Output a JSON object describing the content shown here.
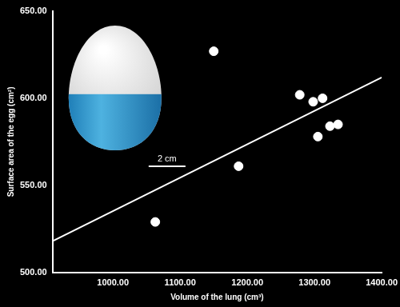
{
  "chart_data": {
    "type": "scatter",
    "x_label": "Volume of the lung (cm³)",
    "y_label": "Surface area of the egg (cm²)",
    "annotations": [
      "2 cm"
    ],
    "series": [
      {
        "type": "scatter",
        "color": "#ffffff",
        "marker": "circle",
        "x": [
          1063,
          1150,
          1187,
          1278,
          1298,
          1312,
          1305,
          1323,
          1335
        ],
        "values": [
          529,
          627,
          561,
          602,
          598,
          600,
          578,
          584,
          585
        ]
      },
      {
        "type": "line",
        "color": "#ffffff",
        "line_style": "solid",
        "x": [
          910,
          1400
        ],
        "values": [
          518,
          612
        ]
      }
    ],
    "xlim": [
      910,
      1400
    ],
    "xticks": [
      {
        "value": 1000,
        "label": "1000.00"
      },
      {
        "value": 1100,
        "label": "1100.00"
      },
      {
        "value": 1200,
        "label": "1200.00"
      },
      {
        "value": 1300,
        "label": "1300.00"
      },
      {
        "value": 1400,
        "label": "1400.00"
      }
    ],
    "ylim": [
      500,
      650
    ],
    "yticks": [
      {
        "value": 500,
        "label": "500.00"
      },
      {
        "value": 550,
        "label": "550.00"
      },
      {
        "value": 600,
        "label": "600.00"
      },
      {
        "value": 650,
        "label": "650.00"
      }
    ],
    "grid": false
  }
}
